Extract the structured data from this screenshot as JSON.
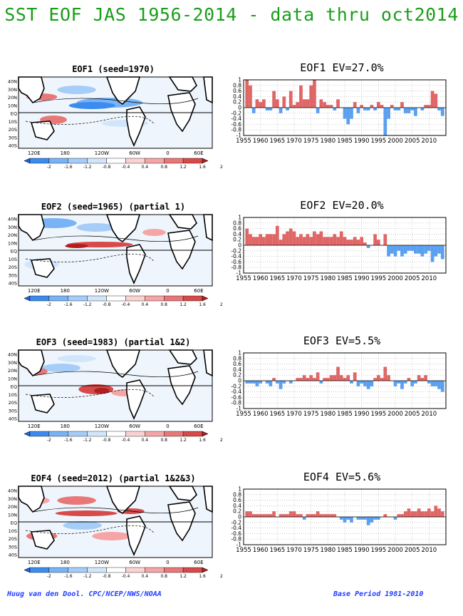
{
  "title": "SST EOF JAS 1956-2014 - data thru oct2014",
  "footer_left": "Huug van den Dool. CPC/NCEP/NWS/NOAA",
  "footer_right": "Base Period 1981-2010",
  "map_lat_labels": [
    "40N",
    "30N",
    "20N",
    "10N",
    "EQ",
    "10S",
    "20S",
    "30S",
    "40S"
  ],
  "map_lon_labels": [
    "120E",
    "180",
    "120W",
    "60W",
    "0",
    "60E"
  ],
  "colorbar_labels": [
    "-2",
    "-1.6",
    "-1.2",
    "-0.8",
    "-0.4",
    "0.4",
    "0.8",
    "1.2",
    "1.6",
    "2"
  ],
  "colors": {
    "title_green": "#1a9e1a",
    "footer_blue": "#1f3cff",
    "bar_positive": "#e06666",
    "bar_negative": "#5aa0f0",
    "colorbar": [
      "#1e64dc",
      "#3c8cf0",
      "#78b4f5",
      "#a5cdf8",
      "#d2e6fb",
      "#ffffff",
      "#fbd2d2",
      "#f5a5a5",
      "#e87878",
      "#d84a4a",
      "#b21e1e"
    ]
  },
  "panels": [
    {
      "map_title": "EOF1  (seed=1970)",
      "bar_title": "EOF1  EV=27.0%"
    },
    {
      "map_title": "EOF2  (seed=1965) (partial 1)",
      "bar_title": "EOF2  EV=20.0%"
    },
    {
      "map_title": "EOF3  (seed=1983) (partial 1&2)",
      "bar_title": "EOF3  EV=5.5%"
    },
    {
      "map_title": "EOF4  (seed=2012) (partial 1&2&3)",
      "bar_title": "EOF4  EV=5.6%"
    }
  ],
  "chart_data": [
    {
      "type": "bar",
      "title": "EOF1  EV=27.0%",
      "x": [
        1956,
        1957,
        1958,
        1959,
        1960,
        1961,
        1962,
        1963,
        1964,
        1965,
        1966,
        1967,
        1968,
        1969,
        1970,
        1971,
        1972,
        1973,
        1974,
        1975,
        1976,
        1977,
        1978,
        1979,
        1980,
        1981,
        1982,
        1983,
        1984,
        1985,
        1986,
        1987,
        1988,
        1989,
        1990,
        1991,
        1992,
        1993,
        1994,
        1995,
        1996,
        1997,
        1998,
        1999,
        2000,
        2001,
        2002,
        2003,
        2004,
        2005,
        2006,
        2007,
        2008,
        2009,
        2010,
        2011,
        2012,
        2013,
        2014
      ],
      "values": [
        1.0,
        0.8,
        -0.2,
        0.3,
        0.2,
        0.3,
        -0.1,
        -0.1,
        0.6,
        0.3,
        -0.2,
        0.4,
        -0.1,
        0.6,
        0.1,
        0.2,
        0.8,
        0.3,
        0.3,
        0.8,
        1.0,
        -0.2,
        0.3,
        0.2,
        0.1,
        0.1,
        -0.1,
        0.3,
        0.0,
        -0.4,
        -0.6,
        -0.4,
        0.2,
        -0.2,
        0.1,
        -0.1,
        -0.1,
        0.1,
        -0.1,
        0.2,
        0.1,
        -1.0,
        -0.4,
        0.1,
        -0.1,
        -0.1,
        0.2,
        -0.2,
        -0.2,
        -0.1,
        -0.3,
        0.0,
        -0.1,
        0.1,
        0.1,
        0.6,
        0.5,
        -0.1,
        -0.3
      ],
      "xticks": [
        1955,
        1960,
        1965,
        1970,
        1975,
        1980,
        1985,
        1990,
        1995,
        2000,
        2005,
        2010
      ],
      "yticks": [
        "-1",
        "-0.8",
        "-0.6",
        "-0.4",
        "-0.2",
        "0",
        "0.2",
        "0.4",
        "0.6",
        "0.8",
        "1"
      ],
      "ylim": [
        -1,
        1
      ],
      "grid": true
    },
    {
      "type": "bar",
      "title": "EOF2  EV=20.0%",
      "x": [
        1956,
        1957,
        1958,
        1959,
        1960,
        1961,
        1962,
        1963,
        1964,
        1965,
        1966,
        1967,
        1968,
        1969,
        1970,
        1971,
        1972,
        1973,
        1974,
        1975,
        1976,
        1977,
        1978,
        1979,
        1980,
        1981,
        1982,
        1983,
        1984,
        1985,
        1986,
        1987,
        1988,
        1989,
        1990,
        1991,
        1992,
        1993,
        1994,
        1995,
        1996,
        1997,
        1998,
        1999,
        2000,
        2001,
        2002,
        2003,
        2004,
        2005,
        2006,
        2007,
        2008,
        2009,
        2010,
        2011,
        2012,
        2013,
        2014
      ],
      "values": [
        0.6,
        0.4,
        0.3,
        0.3,
        0.4,
        0.3,
        0.4,
        0.4,
        0.4,
        0.7,
        0.2,
        0.4,
        0.5,
        0.6,
        0.5,
        0.3,
        0.4,
        0.3,
        0.4,
        0.3,
        0.5,
        0.4,
        0.5,
        0.3,
        0.3,
        0.3,
        0.4,
        0.3,
        0.5,
        0.3,
        0.2,
        0.2,
        0.3,
        0.2,
        0.3,
        0.1,
        -0.1,
        0.0,
        0.4,
        0.2,
        0.0,
        0.4,
        -0.4,
        -0.3,
        -0.4,
        -0.2,
        -0.4,
        -0.3,
        -0.2,
        -0.2,
        -0.3,
        -0.3,
        -0.4,
        -0.3,
        -0.2,
        -0.6,
        -0.4,
        -0.3,
        -0.5
      ],
      "xticks": [
        1955,
        1960,
        1965,
        1970,
        1975,
        1980,
        1985,
        1990,
        1995,
        2000,
        2005,
        2010
      ],
      "yticks": [
        "-1",
        "-0.8",
        "-0.6",
        "-0.4",
        "-0.2",
        "0",
        "0.2",
        "0.4",
        "0.6",
        "0.8",
        "1"
      ],
      "ylim": [
        -1,
        1
      ],
      "grid": true
    },
    {
      "type": "bar",
      "title": "EOF3  EV=5.5%",
      "x": [
        1956,
        1957,
        1958,
        1959,
        1960,
        1961,
        1962,
        1963,
        1964,
        1965,
        1966,
        1967,
        1968,
        1969,
        1970,
        1971,
        1972,
        1973,
        1974,
        1975,
        1976,
        1977,
        1978,
        1979,
        1980,
        1981,
        1982,
        1983,
        1984,
        1985,
        1986,
        1987,
        1988,
        1989,
        1990,
        1991,
        1992,
        1993,
        1994,
        1995,
        1996,
        1997,
        1998,
        1999,
        2000,
        2001,
        2002,
        2003,
        2004,
        2005,
        2006,
        2007,
        2008,
        2009,
        2010,
        2011,
        2012,
        2013,
        2014
      ],
      "values": [
        -0.1,
        -0.1,
        -0.1,
        -0.2,
        -0.1,
        0.0,
        -0.1,
        -0.2,
        0.1,
        -0.1,
        -0.3,
        -0.1,
        0.0,
        -0.1,
        0.0,
        0.1,
        0.1,
        0.2,
        0.1,
        0.2,
        0.1,
        0.3,
        -0.1,
        0.1,
        0.1,
        0.2,
        0.2,
        0.5,
        0.2,
        0.1,
        0.2,
        -0.1,
        0.3,
        -0.2,
        -0.1,
        -0.2,
        -0.3,
        -0.2,
        0.1,
        0.2,
        0.1,
        0.5,
        0.2,
        0.0,
        -0.2,
        -0.1,
        -0.3,
        -0.1,
        0.1,
        -0.2,
        -0.1,
        0.2,
        0.1,
        0.2,
        -0.1,
        -0.2,
        -0.2,
        -0.3,
        -0.4
      ],
      "xticks": [
        1955,
        1960,
        1965,
        1970,
        1975,
        1980,
        1985,
        1990,
        1995,
        2000,
        2005,
        2010
      ],
      "yticks": [
        "-1",
        "-0.8",
        "-0.6",
        "-0.4",
        "-0.2",
        "0",
        "0.2",
        "0.4",
        "0.6",
        "0.8",
        "1"
      ],
      "ylim": [
        -1,
        1
      ],
      "grid": true
    },
    {
      "type": "bar",
      "title": "EOF4  EV=5.6%",
      "x": [
        1956,
        1957,
        1958,
        1959,
        1960,
        1961,
        1962,
        1963,
        1964,
        1965,
        1966,
        1967,
        1968,
        1969,
        1970,
        1971,
        1972,
        1973,
        1974,
        1975,
        1976,
        1977,
        1978,
        1979,
        1980,
        1981,
        1982,
        1983,
        1984,
        1985,
        1986,
        1987,
        1988,
        1989,
        1990,
        1991,
        1992,
        1993,
        1994,
        1995,
        1996,
        1997,
        1998,
        1999,
        2000,
        2001,
        2002,
        2003,
        2004,
        2005,
        2006,
        2007,
        2008,
        2009,
        2010,
        2011,
        2012,
        2013,
        2014
      ],
      "values": [
        0.2,
        0.2,
        0.1,
        0.1,
        0.1,
        0.1,
        0.1,
        0.1,
        0.2,
        0.0,
        0.1,
        0.1,
        0.1,
        0.2,
        0.2,
        0.1,
        0.1,
        -0.1,
        0.1,
        0.1,
        0.1,
        0.2,
        0.1,
        0.1,
        0.1,
        0.1,
        0.1,
        0.0,
        -0.1,
        -0.2,
        -0.1,
        -0.2,
        0.0,
        -0.1,
        -0.1,
        -0.1,
        -0.3,
        -0.2,
        -0.1,
        -0.1,
        0.0,
        0.1,
        0.0,
        0.0,
        -0.1,
        0.1,
        0.1,
        0.2,
        0.3,
        0.2,
        0.2,
        0.3,
        0.2,
        0.2,
        0.3,
        0.2,
        0.4,
        0.3,
        0.2
      ],
      "xticks": [
        1955,
        1960,
        1965,
        1970,
        1975,
        1980,
        1985,
        1990,
        1995,
        2000,
        2005,
        2010
      ],
      "yticks": [
        "-1",
        "-0.8",
        "-0.6",
        "-0.4",
        "-0.2",
        "0",
        "0.2",
        "0.4",
        "0.6",
        "0.8",
        "1"
      ],
      "ylim": [
        -1,
        1
      ],
      "grid": true
    }
  ]
}
